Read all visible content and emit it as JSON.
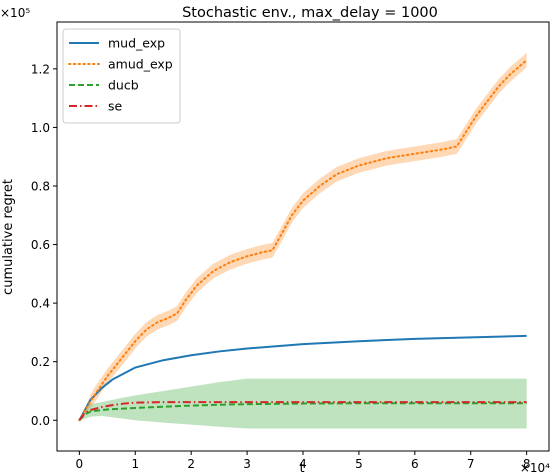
{
  "chart_data": {
    "type": "line",
    "title": "Stochastic env., max_delay = 1000",
    "xlabel": "t",
    "ylabel": "cumulative regret",
    "x_multiplier_label": "×10⁴",
    "y_multiplier_label": "×10⁵",
    "xlim": [
      -0.4,
      8.4
    ],
    "ylim": [
      -0.105,
      1.36
    ],
    "x_ticks": [
      0,
      1,
      2,
      3,
      4,
      5,
      6,
      7,
      8
    ],
    "x_tick_labels": [
      "0",
      "1",
      "2",
      "3",
      "4",
      "5",
      "6",
      "7",
      "8"
    ],
    "y_ticks": [
      0.0,
      0.2,
      0.4,
      0.6,
      0.8,
      1.0,
      1.2
    ],
    "y_tick_labels": [
      "0.0",
      "0.2",
      "0.4",
      "0.6",
      "0.8",
      "1.0",
      "1.2"
    ],
    "grid": false,
    "legend_position": "top-left",
    "series": [
      {
        "name": "mud_exp",
        "color": "#1f77b4",
        "style": "solid",
        "x": [
          0,
          0.2,
          0.4,
          0.6,
          0.8,
          1.0,
          1.5,
          2.0,
          2.5,
          3.0,
          4.0,
          5.0,
          6.0,
          7.0,
          8.0
        ],
        "y": [
          0,
          0.07,
          0.11,
          0.14,
          0.16,
          0.18,
          0.205,
          0.222,
          0.235,
          0.245,
          0.26,
          0.27,
          0.278,
          0.283,
          0.288
        ],
        "band_lower": [],
        "band_upper": []
      },
      {
        "name": "amud_exp",
        "color": "#ff7f0e",
        "style": "dotted",
        "x": [
          0,
          0.25,
          0.5,
          0.75,
          1.0,
          1.2,
          1.4,
          1.6,
          1.75,
          1.9,
          2.1,
          2.4,
          2.7,
          3.0,
          3.3,
          3.45,
          3.6,
          3.8,
          4.0,
          4.3,
          4.6,
          5.0,
          5.5,
          6.0,
          6.5,
          6.75,
          6.9,
          7.1,
          7.3,
          7.5,
          7.7,
          8.0
        ],
        "y": [
          0,
          0.08,
          0.15,
          0.21,
          0.27,
          0.31,
          0.335,
          0.35,
          0.365,
          0.41,
          0.46,
          0.51,
          0.54,
          0.56,
          0.575,
          0.58,
          0.63,
          0.7,
          0.75,
          0.8,
          0.84,
          0.87,
          0.895,
          0.91,
          0.925,
          0.935,
          0.98,
          1.04,
          1.09,
          1.14,
          1.18,
          1.23
        ],
        "band_halfwidth": 0.025
      },
      {
        "name": "ducb",
        "color": "#2ca02c",
        "style": "dashed",
        "x": [
          0,
          0.1,
          0.2,
          0.4,
          0.6,
          1.0,
          1.5,
          2.0,
          2.5,
          3.0,
          4.0,
          5.0,
          6.0,
          7.0,
          8.0
        ],
        "y": [
          0,
          0.02,
          0.03,
          0.035,
          0.038,
          0.042,
          0.046,
          0.05,
          0.053,
          0.055,
          0.057,
          0.058,
          0.058,
          0.058,
          0.058
        ],
        "band_lower": [
          0,
          0.005,
          0.012,
          0.015,
          0.01,
          0.0,
          -0.008,
          -0.015,
          -0.022,
          -0.028,
          -0.028,
          -0.028,
          -0.028,
          -0.028,
          -0.028
        ],
        "band_upper": [
          0,
          0.04,
          0.055,
          0.062,
          0.07,
          0.085,
          0.1,
          0.115,
          0.13,
          0.142,
          0.142,
          0.142,
          0.142,
          0.142,
          0.142
        ]
      },
      {
        "name": "se",
        "color": "#d62728",
        "style": "dashdot",
        "x": [
          0,
          0.1,
          0.2,
          0.4,
          0.6,
          0.8,
          1.0,
          1.5,
          2.0,
          3.0,
          4.0,
          5.0,
          6.0,
          7.0,
          8.0
        ],
        "y": [
          0,
          0.025,
          0.035,
          0.045,
          0.052,
          0.057,
          0.06,
          0.062,
          0.062,
          0.062,
          0.062,
          0.062,
          0.062,
          0.062,
          0.062
        ],
        "band_lower": [],
        "band_upper": []
      }
    ]
  }
}
